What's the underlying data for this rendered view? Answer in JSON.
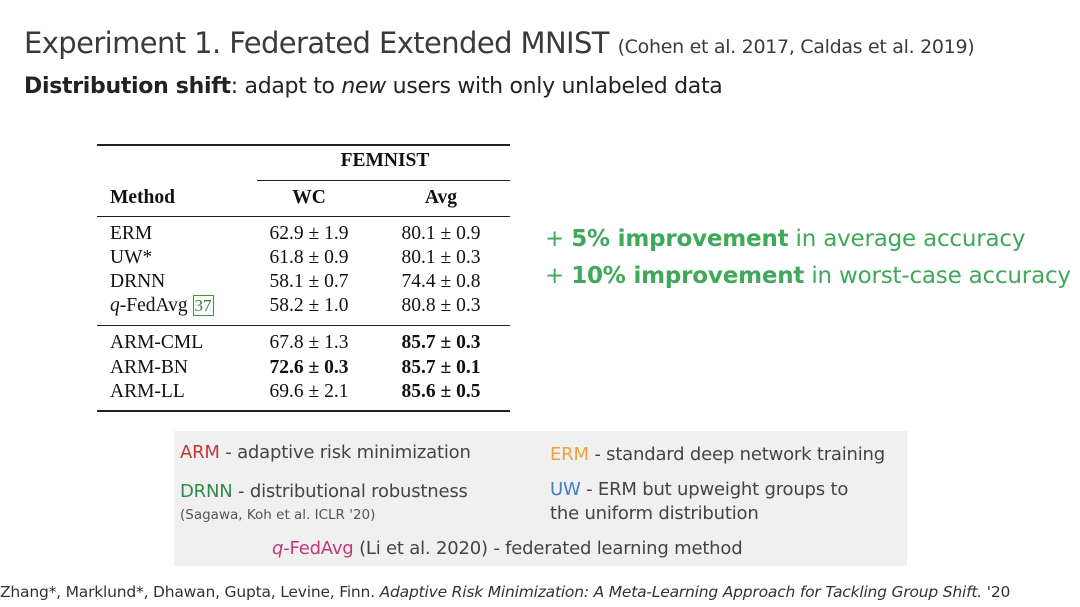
{
  "slide": {
    "title": "Experiment 1. Federated Extended MNIST",
    "title_citation": "(Cohen et al. 2017, Caldas et al. 2019)",
    "subtitle_bold": "Distribution shift",
    "subtitle_pre": ": adapt to ",
    "subtitle_italic": "new",
    "subtitle_post": " users with only unlabeled data"
  },
  "table": {
    "group_header": "FEMNIST",
    "col_method": "Method",
    "col_wc": "WC",
    "col_avg": "Avg",
    "baselines": [
      {
        "method": "ERM",
        "wc": "62.9 ± 1.9",
        "avg": "80.1 ± 0.9"
      },
      {
        "method": "UW*",
        "wc": "61.8 ± 0.9",
        "avg": "80.1 ± 0.3"
      },
      {
        "method": "DRNN",
        "wc": "58.1 ± 0.7",
        "avg": "74.4 ± 0.8"
      },
      {
        "method_italic": "q",
        "method": "-FedAvg",
        "method_cite": "37",
        "wc": "58.2 ± 1.0",
        "avg": "80.8 ± 0.3"
      }
    ],
    "arm": [
      {
        "method": "ARM-CML",
        "wc": "67.8 ± 1.3",
        "avg": "85.7 ± 0.3"
      },
      {
        "method": "ARM-BN",
        "wc": "72.6 ± 0.3",
        "avg": "85.7 ± 0.1"
      },
      {
        "method": "ARM-LL",
        "wc": "69.6 ± 2.1",
        "avg": "85.6 ± 0.5"
      }
    ]
  },
  "improvements": [
    {
      "prefix": "+ ",
      "bold": "5% improvement",
      "rest": " in average accuracy"
    },
    {
      "prefix": "+ ",
      "bold": "10% improvement",
      "rest": " in worst-case accuracy"
    }
  ],
  "legend": {
    "arm_key": "ARM",
    "arm_desc": " - adaptive risk minimization",
    "erm_key": "ERM",
    "erm_desc": " - standard deep network training",
    "drnn_key": "DRNN",
    "drnn_desc": " - distributional robustness",
    "drnn_cite": "(Sagawa, Koh et al. ICLR '20)",
    "uw_key": "UW",
    "uw_desc_1": " - ERM but upweight groups to",
    "uw_desc_2": "the uniform distribution",
    "q_italic": "q",
    "q_key": "-FedAvg",
    "q_desc": " (Li et al. 2020) - federated learning method"
  },
  "footer": {
    "authors": "Zhang*, Marklund*, Dhawan, Gupta, Levine, Finn. ",
    "paper_title": "Adaptive Risk Minimization: A Meta-Learning Approach for Tackling Group Shift.",
    "year": " '20"
  },
  "colors": {
    "improvement_green": "#3fa85a",
    "arm_red": "#c03a3a",
    "drnn_green": "#2f8a4a",
    "erm_orange": "#f0a040",
    "uw_blue": "#3b7fc4",
    "qfedavg_magenta": "#c03a7a",
    "legend_bg": "#f0f0f0"
  }
}
